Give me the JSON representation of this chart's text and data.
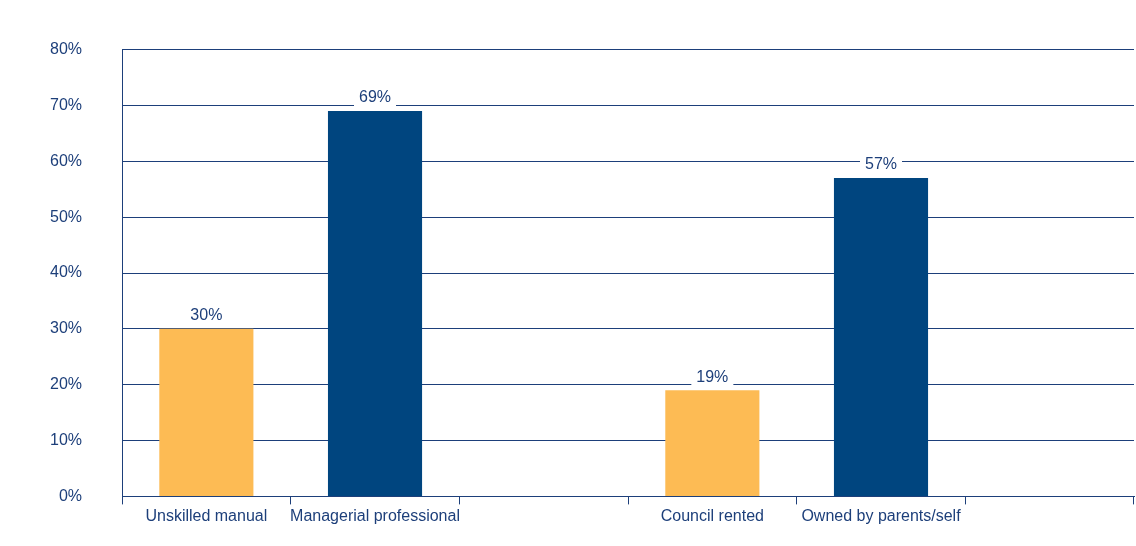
{
  "chart_data": {
    "type": "bar",
    "categories": [
      "Unskilled manual",
      "Managerial professional",
      null,
      "Council rented",
      "Owned by parents/self",
      null
    ],
    "values": [
      30,
      69,
      null,
      19,
      57,
      null
    ],
    "colors": [
      "#fdbb54",
      "#00457f",
      null,
      "#fdbb54",
      "#00457f",
      null
    ],
    "value_labels": [
      "30%",
      "69%",
      null,
      "19%",
      "57%",
      null
    ],
    "ylim": [
      0,
      80
    ],
    "yticks": [
      {
        "value": 0,
        "label": "0%"
      },
      {
        "value": 10,
        "label": "10%"
      },
      {
        "value": 20,
        "label": "20%"
      },
      {
        "value": 30,
        "label": "30%"
      },
      {
        "value": 40,
        "label": "40%"
      },
      {
        "value": 50,
        "label": "50%"
      },
      {
        "value": 60,
        "label": "60%"
      },
      {
        "value": 70,
        "label": "70%"
      },
      {
        "value": 80,
        "label": "80%"
      }
    ],
    "grid": "y",
    "legend": false
  }
}
